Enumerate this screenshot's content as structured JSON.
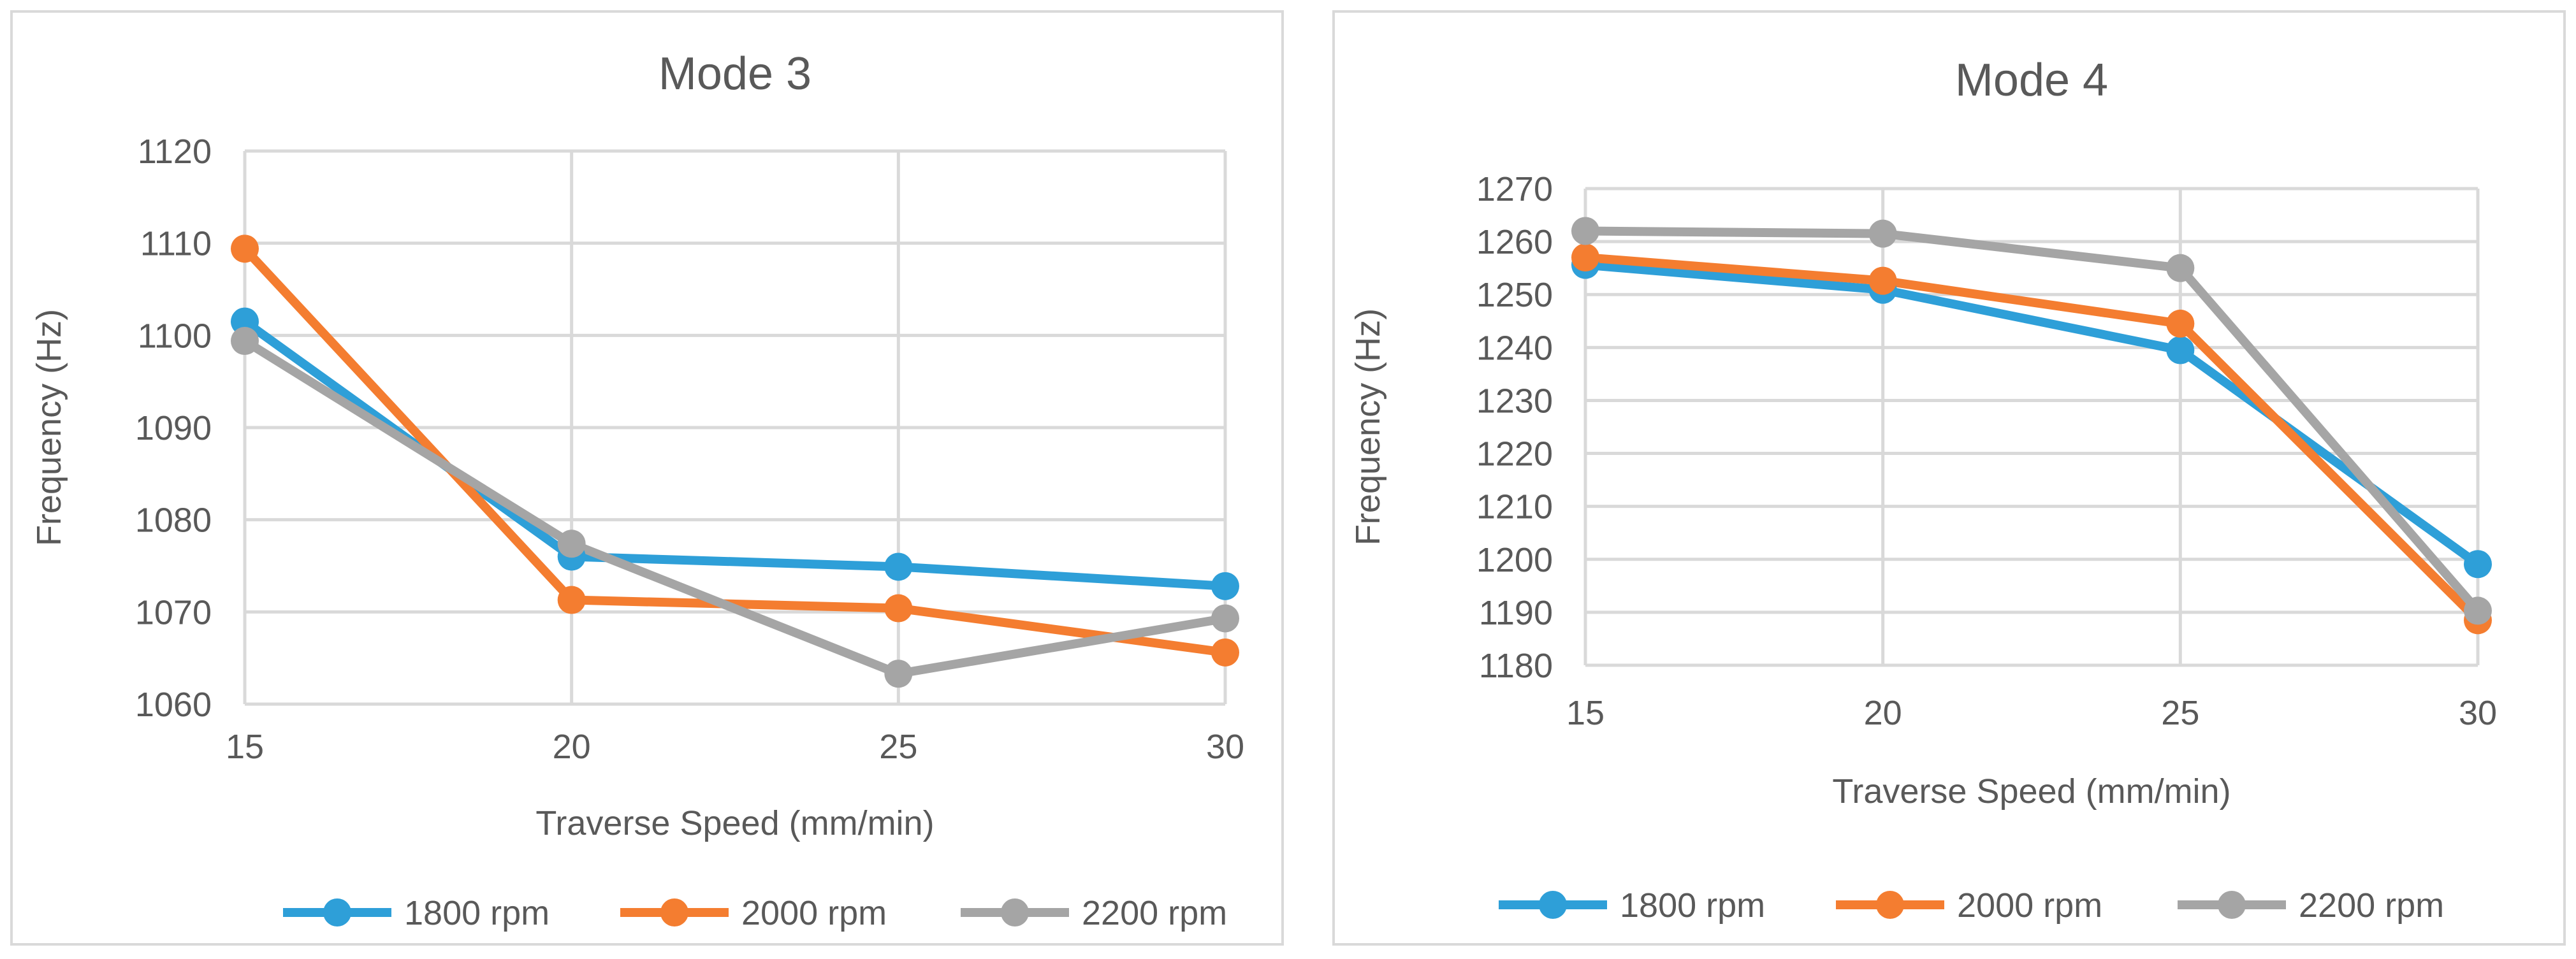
{
  "chart_data": [
    {
      "type": "line",
      "title": "Mode 3",
      "xlabel": "Traverse Speed (mm/min)",
      "ylabel": "Frequency (Hz)",
      "categories": [
        "15",
        "20",
        "25",
        "30"
      ],
      "ylim": [
        1060,
        1120
      ],
      "yticks": [
        "1060",
        "1070",
        "1080",
        "1090",
        "1100",
        "1110",
        "1120"
      ],
      "grid": true,
      "legend_position": "bottom",
      "series": [
        {
          "name": "1800 rpm",
          "color": "#2e9fd8",
          "values": [
            1101.5,
            1076.0,
            1074.9,
            1072.8
          ]
        },
        {
          "name": "2000 rpm",
          "color": "#f47d30",
          "values": [
            1109.4,
            1071.3,
            1070.4,
            1065.6
          ]
        },
        {
          "name": "2200 rpm",
          "color": "#a5a5a5",
          "values": [
            1099.4,
            1077.4,
            1063.3,
            1069.3
          ]
        }
      ]
    },
    {
      "type": "line",
      "title": "Mode 4",
      "xlabel": "Traverse Speed (mm/min)",
      "ylabel": "Frequency (Hz)",
      "categories": [
        "15",
        "20",
        "25",
        "30"
      ],
      "ylim": [
        1180,
        1270
      ],
      "yticks": [
        "1180",
        "1190",
        "1200",
        "1210",
        "1220",
        "1230",
        "1240",
        "1250",
        "1260",
        "1270"
      ],
      "grid": true,
      "legend_position": "bottom",
      "series": [
        {
          "name": "1800 rpm",
          "color": "#2e9fd8",
          "values": [
            1255.6,
            1250.9,
            1239.5,
            1199.1
          ]
        },
        {
          "name": "2000 rpm",
          "color": "#f47d30",
          "values": [
            1257.0,
            1252.6,
            1244.5,
            1188.5
          ]
        },
        {
          "name": "2200 rpm",
          "color": "#a5a5a5",
          "values": [
            1262.0,
            1261.5,
            1255.0,
            1190.3
          ]
        }
      ]
    }
  ]
}
